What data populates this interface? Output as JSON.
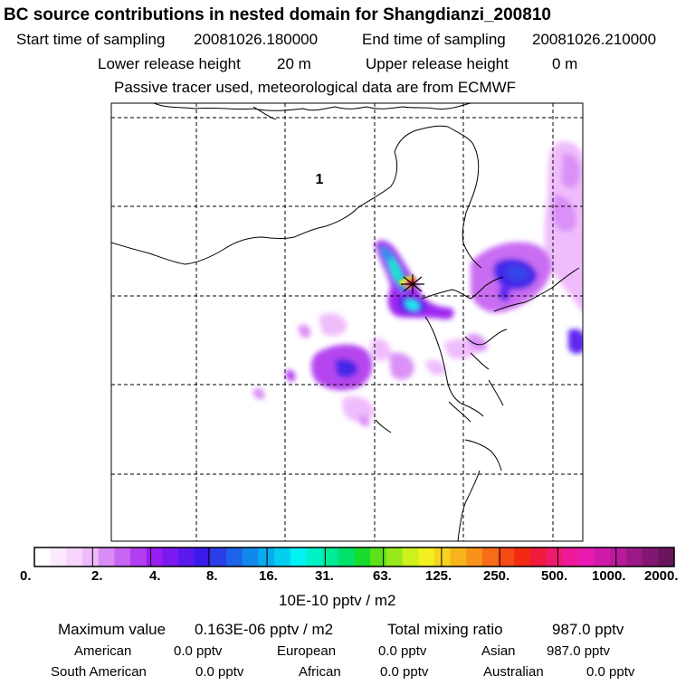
{
  "title": "BC  source contributions in nested domain for Shangdianzi_200810",
  "header": {
    "start_label": "Start time of sampling",
    "start_value": "20081026.180000",
    "end_label": "End time of sampling",
    "end_value": "20081026.210000",
    "lower_label": "Lower release height",
    "lower_value": "20 m",
    "upper_label": "Upper release height",
    "upper_value": "0 m",
    "note": "Passive tracer used, meteorological data are from ECMWF"
  },
  "map": {
    "region_label": "1",
    "receptor_marker": "star-cross-icon"
  },
  "colorbar": {
    "labels": [
      "0.",
      "2.",
      "4.",
      "8.",
      "16.",
      "31.",
      "63.",
      "125.",
      "250.",
      "500.",
      "1000.",
      "2000."
    ],
    "unit": "10E-10 pptv / m2",
    "colors": [
      "#ffffff",
      "#fbeafe",
      "#f6d4fd",
      "#efbafc",
      "#d98bf6",
      "#c766f2",
      "#b23eef",
      "#9a1cf0",
      "#7a1af0",
      "#5a1aee",
      "#3a1ae8",
      "#2a3ee6",
      "#1c63ea",
      "#1288ec",
      "#08acee",
      "#04cff0",
      "#00f2f2",
      "#00f0c8",
      "#00ea98",
      "#00e26a",
      "#18dc2c",
      "#5ee01a",
      "#98e81a",
      "#cef01c",
      "#f2f01e",
      "#f6d41e",
      "#f8b41c",
      "#f8921a",
      "#f66c18",
      "#f44a16",
      "#f22a14",
      "#f01a3c",
      "#ee1a6c",
      "#ec1a98",
      "#e81ab2",
      "#d01aa8",
      "#b81a9a",
      "#9c1888",
      "#821672",
      "#6a145e"
    ]
  },
  "footer": {
    "max_label": "Maximum value",
    "max_value": "0.163E-06 pptv / m2",
    "total_label": "Total mixing ratio",
    "total_value": "987.0 pptv",
    "american_label": "American",
    "american_value": "0.0 pptv",
    "european_label": "European",
    "european_value": "0.0 pptv",
    "asian_label": "Asian",
    "asian_value": "987.0 pptv",
    "south_american_label": "South American",
    "south_american_value": "0.0 pptv",
    "african_label": "African",
    "african_value": "0.0 pptv",
    "australian_label": "Australian",
    "australian_value": "0.0 pptv"
  }
}
